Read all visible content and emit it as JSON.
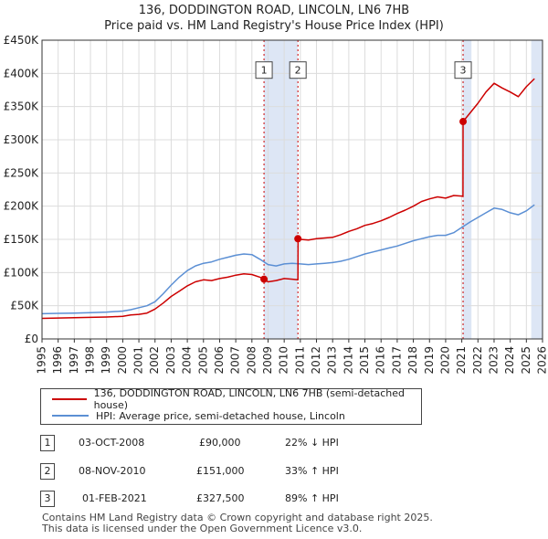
{
  "title_line1": "136, DODDINGTON ROAD, LINCOLN, LN6 7HB",
  "title_line2": "Price paid vs. HM Land Registry's House Price Index (HPI)",
  "chart_data": {
    "type": "line",
    "title": "136, DODDINGTON ROAD, LINCOLN, LN6 7HB",
    "subtitle": "Price paid vs. HM Land Registry's House Price Index (HPI)",
    "xlim": [
      1995,
      2026
    ],
    "ylim": [
      0,
      450000
    ],
    "y_ticks": [
      0,
      50000,
      100000,
      150000,
      200000,
      250000,
      300000,
      350000,
      400000,
      450000
    ],
    "y_tick_labels": [
      "£0",
      "£50K",
      "£100K",
      "£150K",
      "£200K",
      "£250K",
      "£300K",
      "£350K",
      "£400K",
      "£450K"
    ],
    "x_ticks": [
      1995,
      1996,
      1997,
      1998,
      1999,
      2000,
      2001,
      2002,
      2003,
      2004,
      2005,
      2006,
      2007,
      2008,
      2009,
      2010,
      2011,
      2012,
      2013,
      2014,
      2015,
      2016,
      2017,
      2018,
      2019,
      2020,
      2021,
      2022,
      2023,
      2024,
      2025,
      2026
    ],
    "grid": true,
    "series": [
      {
        "name": "136, DODDINGTON ROAD, LINCOLN, LN6 7HB (semi-detached house)",
        "color": "#cc0000",
        "x": [
          1995,
          1996,
          1997,
          1998,
          1999,
          2000,
          2000.5,
          2001,
          2001.5,
          2002,
          2002.5,
          2003,
          2003.5,
          2004,
          2004.5,
          2005,
          2005.5,
          2006,
          2006.5,
          2007,
          2007.5,
          2008,
          2008.5,
          2008.75,
          2009,
          2009.5,
          2010,
          2010.5,
          2010.85,
          2010.86,
          2011,
          2011.5,
          2012,
          2012.5,
          2013,
          2013.5,
          2014,
          2014.5,
          2015,
          2015.5,
          2016,
          2016.5,
          2017,
          2017.5,
          2018,
          2018.5,
          2019,
          2019.5,
          2020,
          2020.5,
          2021.07,
          2021.08,
          2021.5,
          2022,
          2022.5,
          2023,
          2023.5,
          2024,
          2024.5,
          2025,
          2025.5
        ],
        "values": [
          31000,
          31500,
          32000,
          32500,
          33000,
          34000,
          36000,
          37000,
          39000,
          45000,
          54000,
          64000,
          72000,
          80000,
          86000,
          89000,
          88000,
          91000,
          93000,
          96000,
          98000,
          97000,
          93000,
          90000,
          86000,
          88000,
          91000,
          90000,
          89000,
          151000,
          150000,
          149000,
          151000,
          152000,
          153000,
          157000,
          162000,
          166000,
          171000,
          174000,
          178000,
          183000,
          189000,
          194000,
          200000,
          207000,
          211000,
          214000,
          212000,
          216000,
          215000,
          327500,
          340000,
          355000,
          372000,
          385000,
          378000,
          372000,
          365000,
          380000,
          392000
        ]
      },
      {
        "name": "HPI: Average price, semi-detached house, Lincoln",
        "color": "#5b8fd4",
        "x": [
          1995,
          1996,
          1997,
          1998,
          1999,
          2000,
          2000.5,
          2001,
          2001.5,
          2002,
          2002.5,
          2003,
          2003.5,
          2004,
          2004.5,
          2005,
          2005.5,
          2006,
          2006.5,
          2007,
          2007.5,
          2008,
          2008.5,
          2009,
          2009.5,
          2010,
          2010.5,
          2011,
          2011.5,
          2012,
          2012.5,
          2013,
          2013.5,
          2014,
          2014.5,
          2015,
          2015.5,
          2016,
          2016.5,
          2017,
          2017.5,
          2018,
          2018.5,
          2019,
          2019.5,
          2020,
          2020.5,
          2021,
          2021.5,
          2022,
          2022.5,
          2023,
          2023.5,
          2024,
          2024.5,
          2025,
          2025.5
        ],
        "values": [
          38000,
          38500,
          39000,
          39500,
          40500,
          42000,
          44000,
          47000,
          50000,
          56000,
          68000,
          81000,
          93000,
          103000,
          110000,
          114000,
          116000,
          120000,
          123000,
          126000,
          128000,
          127000,
          120000,
          112000,
          110000,
          113000,
          114000,
          113000,
          112000,
          113000,
          114000,
          115000,
          117000,
          120000,
          124000,
          128000,
          131000,
          134000,
          137000,
          140000,
          144000,
          148000,
          151000,
          154000,
          156000,
          156000,
          160000,
          168000,
          176000,
          183000,
          190000,
          197000,
          195000,
          190000,
          187000,
          193000,
          202000
        ]
      }
    ],
    "sales": [
      {
        "label": "1",
        "x": 2008.75,
        "value": 90000
      },
      {
        "label": "2",
        "x": 2010.85,
        "value": 151000
      },
      {
        "label": "3",
        "x": 2021.08,
        "value": 327500
      }
    ],
    "shaded_periods": [
      [
        2008.75,
        2010.85
      ],
      [
        2021.08,
        2021.6
      ],
      [
        2025.3,
        2026
      ]
    ],
    "marker_label_y": 405000
  },
  "legend": {
    "property_label": "136, DODDINGTON ROAD, LINCOLN, LN6 7HB (semi-detached house)",
    "hpi_label": "HPI: Average price, semi-detached house, Lincoln",
    "property_color": "#cc0000",
    "hpi_color": "#5b8fd4"
  },
  "transactions": [
    {
      "num": "1",
      "date": "03-OCT-2008",
      "price": "£90,000",
      "hpi": "22% ↓ HPI"
    },
    {
      "num": "2",
      "date": "08-NOV-2010",
      "price": "£151,000",
      "hpi": "33% ↑ HPI"
    },
    {
      "num": "3",
      "date": "01-FEB-2021",
      "price": "£327,500",
      "hpi": "89% ↑ HPI"
    }
  ],
  "footer": {
    "line1": "Contains HM Land Registry data © Crown copyright and database right 2025.",
    "line2": "This data is licensed under the Open Government Licence v3.0."
  }
}
